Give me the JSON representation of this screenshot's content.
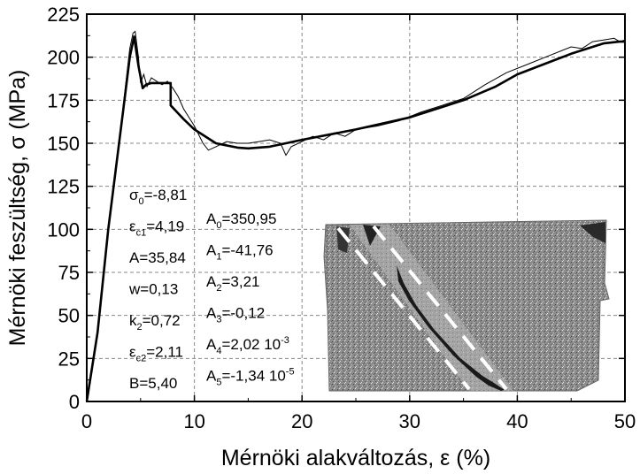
{
  "chart_data": {
    "type": "line",
    "xlabel": "Mérnöki alakváltozás, ε (%)",
    "ylabel": "Mérnöki feszültség, σ (MPa)",
    "xlim": [
      0,
      50
    ],
    "ylim": [
      0,
      225
    ],
    "x_ticks": [
      "0",
      "10",
      "20",
      "30",
      "40",
      "50"
    ],
    "y_ticks": [
      "0",
      "25",
      "50",
      "75",
      "100",
      "125",
      "150",
      "175",
      "200",
      "225"
    ],
    "grid": true,
    "series": [
      {
        "style": "thick-model",
        "x": [
          0,
          1,
          2,
          3,
          3.5,
          4,
          4.4,
          4.8,
          5.2,
          5.5,
          6,
          7,
          7.8,
          7.8,
          9,
          10,
          12,
          14,
          15,
          17,
          20,
          25,
          30,
          35,
          38,
          40,
          45,
          48,
          49.5,
          50
        ],
        "y": [
          0,
          40,
          100,
          150,
          175,
          200,
          212,
          195,
          182,
          184,
          185,
          185,
          185,
          172,
          164,
          158,
          150,
          147.5,
          147,
          148,
          152,
          158,
          165,
          175,
          183,
          190,
          202,
          208,
          209,
          209
        ]
      },
      {
        "style": "thin-measured",
        "x": [
          0,
          1,
          2,
          3,
          3.5,
          4,
          4.3,
          4.5,
          4.8,
          5,
          5.3,
          5.6,
          6,
          6.5,
          7,
          7.5,
          8,
          8.5,
          9,
          10,
          10.8,
          11.3,
          12,
          13,
          14,
          15,
          16,
          17,
          18,
          18.5,
          19,
          20,
          21,
          22,
          23,
          24,
          25,
          27,
          29,
          31,
          33,
          35,
          37,
          39,
          41,
          43,
          45,
          46,
          47,
          48,
          49,
          49.5,
          50,
          50
        ],
        "y": [
          0,
          40,
          100,
          150,
          178,
          205,
          214,
          215,
          200,
          185,
          190,
          183,
          188,
          186,
          184,
          186,
          182,
          177,
          170,
          160,
          150,
          146,
          148,
          151,
          150,
          150,
          151,
          152,
          150,
          143,
          148,
          151,
          154,
          152,
          156,
          154,
          158,
          160,
          163,
          168,
          172,
          176,
          184,
          191,
          196,
          201,
          206,
          205,
          209,
          210,
          211,
          209,
          210,
          201
        ]
      }
    ]
  },
  "params_left": [
    {
      "sym": "σ",
      "sub": "0",
      "text": "=-8,81"
    },
    {
      "sym": "ε",
      "sub": "c1",
      "text": "=4,19"
    },
    {
      "sym": "",
      "sub": "",
      "text": "A=35,84"
    },
    {
      "sym": "",
      "sub": "",
      "text": "w=0,13"
    },
    {
      "sym": "k",
      "sub": "2",
      "text": "=0,72"
    },
    {
      "sym": "ε",
      "sub": "c2",
      "text": "=2,11"
    },
    {
      "sym": "",
      "sub": "",
      "text": "B=5,40"
    }
  ],
  "params_right": [
    {
      "sym": "A",
      "sub": "0",
      "text": "=350,95",
      "sup": ""
    },
    {
      "sym": "A",
      "sub": "1",
      "text": "=-41,76",
      "sup": ""
    },
    {
      "sym": "A",
      "sub": "2",
      "text": "=3,21",
      "sup": ""
    },
    {
      "sym": "A",
      "sub": "3",
      "text": "=-0,12",
      "sup": ""
    },
    {
      "sym": "A",
      "sub": "4",
      "text": "=2,02 10",
      "sup": "-3"
    },
    {
      "sym": "A",
      "sub": "5",
      "text": "=-1,34 10",
      "sup": "-5"
    }
  ],
  "colors": {
    "line": "#000000",
    "grid": "#888888",
    "specimen_bg": "#8a8a8a",
    "dashed_marks": "#ffffff"
  }
}
